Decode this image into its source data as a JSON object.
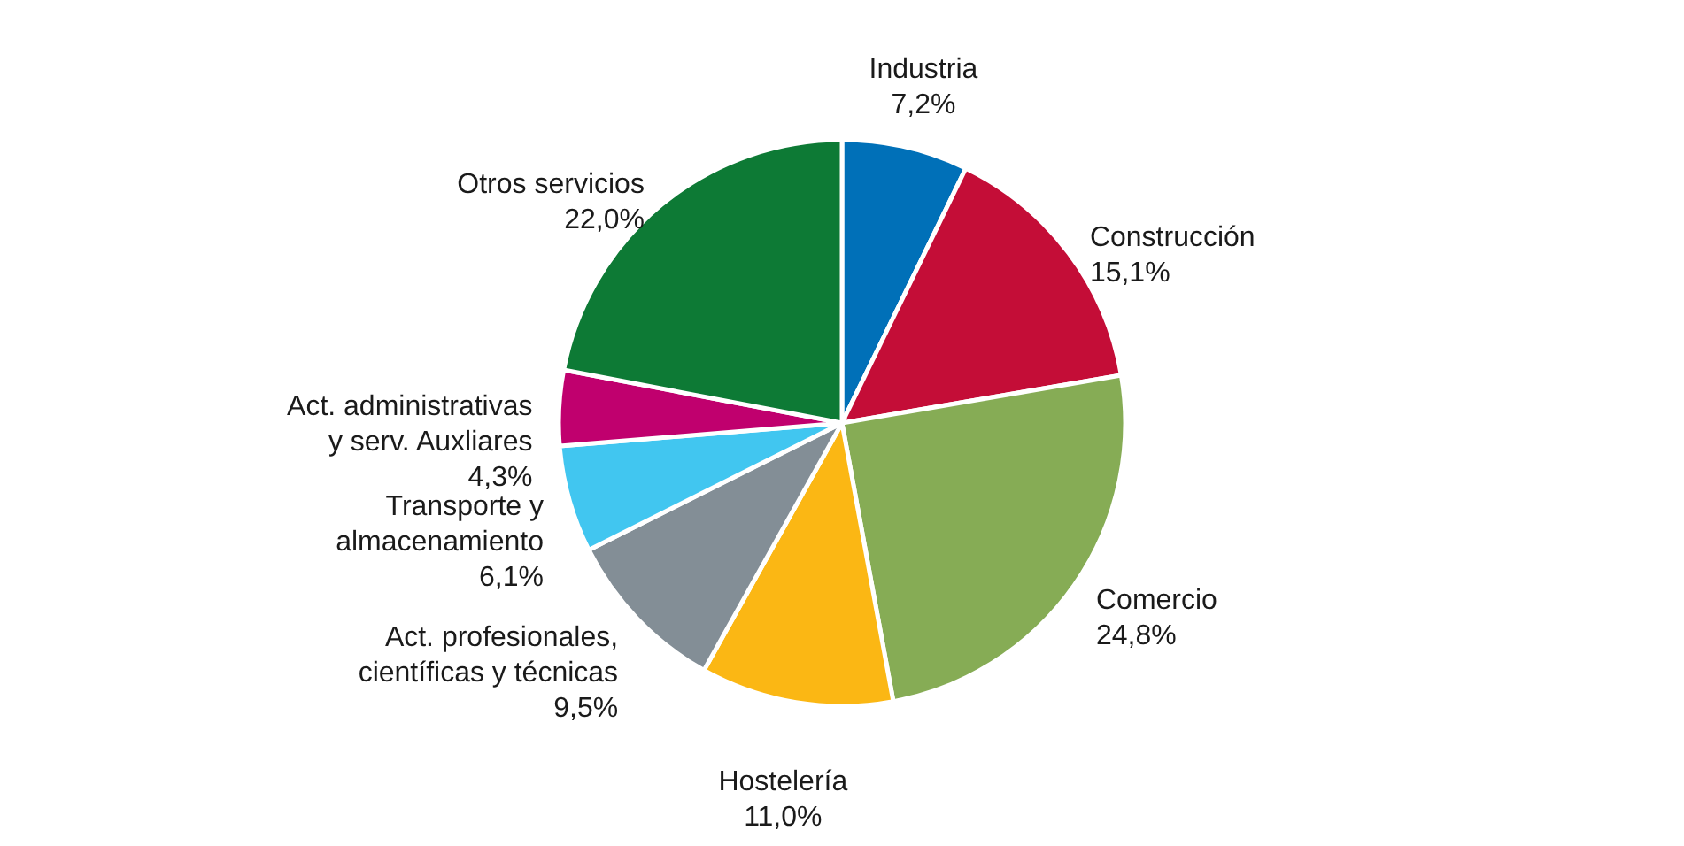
{
  "chart_data": {
    "type": "pie",
    "categories": [
      "Industria",
      "Construcción",
      "Comercio",
      "Hostelería",
      "Act. profesionales,\ncientíficas y técnicas",
      "Transporte y\nalmacenamiento",
      "Act. administrativas\ny serv. Auxliares",
      "Otros servicios"
    ],
    "values": [
      7.2,
      15.1,
      24.8,
      11.0,
      9.5,
      6.1,
      4.3,
      22.0
    ],
    "value_labels": [
      "7,2%",
      "15,1%",
      "24,8%",
      "11,0%",
      "9,5%",
      "6,1%",
      "4,3%",
      "22,0%"
    ],
    "colors": [
      "#0070b8",
      "#c40d37",
      "#86ac55",
      "#fbb714",
      "#838e96",
      "#41c6f0",
      "#c0006e",
      "#0d7a35"
    ]
  }
}
